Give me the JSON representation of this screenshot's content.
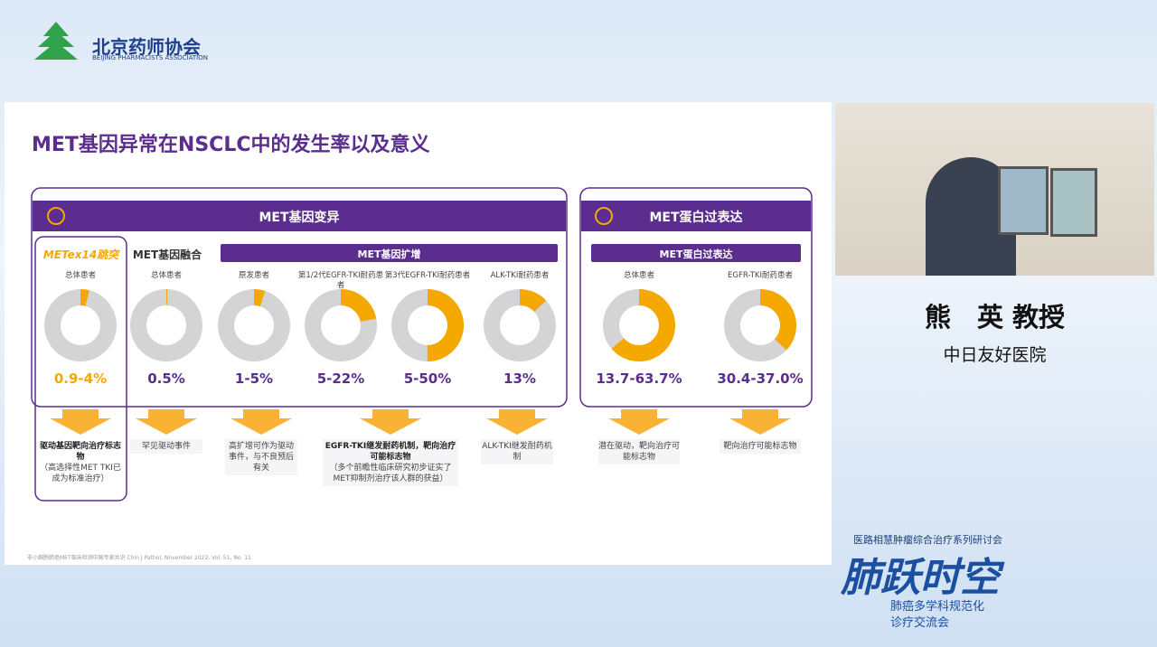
{
  "header": {
    "org": "北京药师协会",
    "org_en": "BEIJING PHARMACISTS ASSOCIATION"
  },
  "slide": {
    "title": "MET基因异常在NSCLC中的发生率以及意义",
    "groups": [
      {
        "title": "MET基因变异"
      },
      {
        "title": "MET蛋白过表达"
      }
    ],
    "subgroups": [
      "METex14跳突",
      "MET基因融合",
      "MET基因扩增",
      "MET蛋白过表达"
    ],
    "donuts": [
      {
        "population": "总体患者",
        "value": 4,
        "value_label": "0.9-4%"
      },
      {
        "population": "总体患者",
        "value": 0.5,
        "value_label": "0.5%"
      },
      {
        "population": "原发患者",
        "value": 5,
        "value_label": "1-5%"
      },
      {
        "population": "第1/2代EGFR-TKI耐药患者",
        "value": 22,
        "value_label": "5-22%"
      },
      {
        "population": "第3代EGFR-TKI耐药患者",
        "value": 50,
        "value_label": "5-50%"
      },
      {
        "population": "ALK-TKI耐药患者",
        "value": 13,
        "value_label": "13%"
      },
      {
        "population": "总体患者",
        "value": 63.7,
        "value_label": "13.7-63.7%"
      },
      {
        "population": "EGFR-TKI耐药患者",
        "value": 37.0,
        "value_label": "30.4-37.0%"
      }
    ],
    "notes": [
      {
        "bold": "驱动基因靶向治疗标志物",
        "text": "（高选择性MET TKI已成为标准治疗）"
      },
      {
        "text": "罕见驱动事件"
      },
      {
        "text": "高扩增可作为驱动事件，与不良预后有关"
      },
      {
        "bold": "EGFR-TKI继发耐药机制，靶向治疗可能标志物",
        "text": "（多个前瞻性临床研究初步证实了MET抑制剂治疗该人群的获益）"
      },
      {
        "text": "ALK-TKI继发耐药机制"
      },
      {
        "text": "潜在驱动，靶向治疗可能标志物"
      },
      {
        "text": "靶向治疗可能标志物"
      }
    ],
    "footnote": "非小细胞肺癌MET临床检测中国专家共识 Chin J Pathol, November 2022, Vol. 51, No. 11"
  },
  "speaker": {
    "name": "熊　英 教授",
    "hospital": "中日友好医院"
  },
  "event": {
    "series": "医路相慧肿瘤综合治疗系列研讨会",
    "title": "肺跃时空",
    "line1": "肺癌多学科规范化",
    "line2": "诊疗交流会"
  }
}
